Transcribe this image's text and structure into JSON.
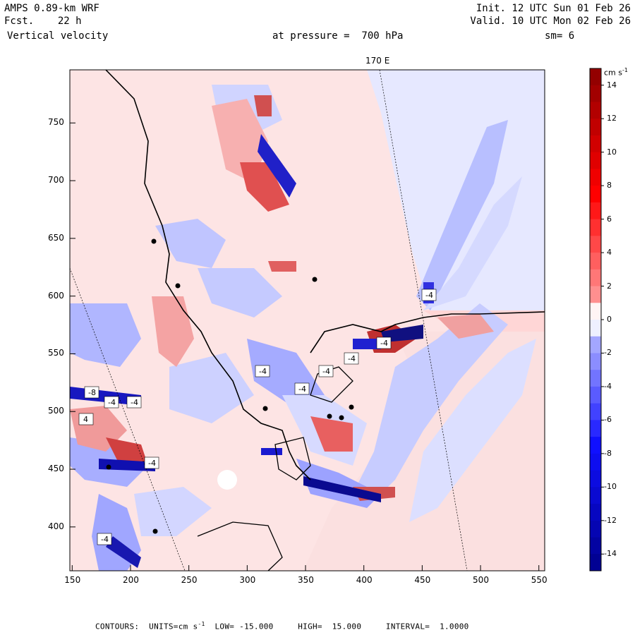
{
  "header": {
    "model": "AMPS 0.89-km WRF",
    "fcst_label": "Fcst.",
    "fcst_value": "22 h",
    "variable": "Vertical velocity",
    "init": "Init. 12 UTC Sun 01 Feb 26",
    "valid": "Valid. 10 UTC Mon 02 Feb 26",
    "pressure": "at pressure =  700 hPa",
    "smoothing": "sm= 6"
  },
  "map": {
    "meridian_label": "170 E",
    "x_ticks": [
      150,
      200,
      250,
      300,
      350,
      400,
      450,
      500,
      550
    ],
    "y_ticks": [
      750,
      700,
      650,
      600,
      550,
      500,
      450,
      400
    ],
    "x_range": [
      148,
      555
    ],
    "y_range": [
      362,
      796
    ],
    "contour_labels": [
      "-4",
      "-4",
      "-4",
      "-4",
      "-4",
      "4",
      "-4",
      "-8",
      "-4",
      "-4",
      "-4",
      "-4"
    ]
  },
  "colorbar": {
    "units_label": "cm s",
    "units_exp": "-1",
    "ticks": [
      "14",
      "12",
      "10",
      "8",
      "6",
      "4",
      "2",
      "0",
      "-2",
      "-4",
      "-6",
      "-8",
      "-10",
      "-12",
      "-14"
    ],
    "colors": {
      "pos_dark": "#8b0000",
      "pos_mid": "#ff0000",
      "pos_light": "#ffb3b3",
      "zero": "#fff4f4",
      "neg_light": "#c8ccff",
      "neg_mid": "#1010ff",
      "neg_dark": "#00008b"
    }
  },
  "footer": {
    "contours_label": "CONTOURS:",
    "units_prefix": "UNITS=cm s",
    "units_exp": "-1",
    "low_label": "LOW=",
    "low_value": "-15.000",
    "high_label": "HIGH=",
    "high_value": "15.000",
    "interval_label": "INTERVAL=",
    "interval_value": "1.0000"
  }
}
